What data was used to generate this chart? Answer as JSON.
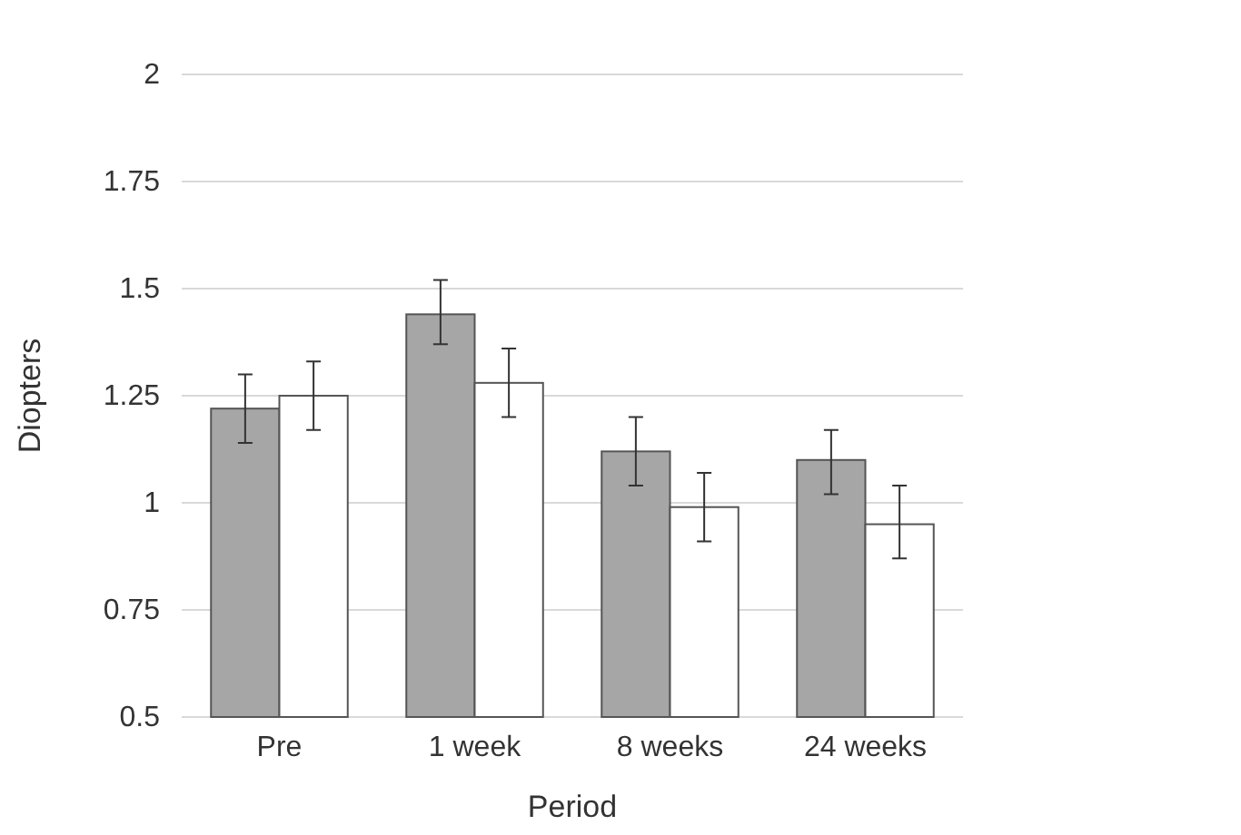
{
  "chart_data": {
    "type": "bar",
    "xlabel": "Period",
    "ylabel": "Diopters",
    "categories": [
      "Pre",
      "1 week",
      "8 weeks",
      "24 weeks"
    ],
    "series": [
      {
        "color": "#a6a6a6",
        "values": [
          1.22,
          1.44,
          1.12,
          1.1
        ],
        "errors": [
          [
            1.14,
            1.3
          ],
          [
            1.37,
            1.52
          ],
          [
            1.04,
            1.2
          ],
          [
            1.02,
            1.17
          ]
        ]
      },
      {
        "color": "#ffffff",
        "values": [
          1.25,
          1.28,
          0.99,
          0.95
        ],
        "errors": [
          [
            1.17,
            1.33
          ],
          [
            1.2,
            1.36
          ],
          [
            0.91,
            1.07
          ],
          [
            0.87,
            1.04
          ]
        ]
      }
    ],
    "ylim": [
      0.5,
      2
    ],
    "yticks": [
      0.5,
      0.75,
      1,
      1.25,
      1.5,
      1.75,
      2
    ],
    "grid": "y"
  }
}
